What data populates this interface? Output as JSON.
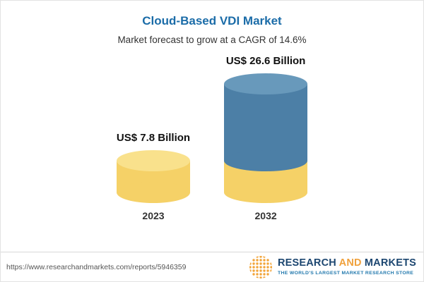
{
  "chart_data": {
    "type": "bar",
    "title": "Cloud-Based VDI Market",
    "subtitle": "Market forecast to grow at a CAGR of 14.6%",
    "categories": [
      "2023",
      "2032"
    ],
    "values": [
      7.8,
      26.6
    ],
    "unit": "US$ Billion",
    "value_labels": [
      "US$ 7.8 Billion",
      "US$ 26.6 Billion"
    ],
    "cagr_percent": 14.6,
    "ylim": [
      0,
      30
    ],
    "legend": "none",
    "axes": "none",
    "colors": {
      "bar_2023_body": "#f5d167",
      "bar_2023_top": "#f9e18c",
      "bar_2032_body": "#4c7fa6",
      "bar_2032_top": "#6899bb",
      "bar_2032_base_band": "#f5d167",
      "title_text": "#1b6ca8"
    }
  },
  "footer": {
    "source_url": "https://www.researchandmarkets.com/reports/5946359",
    "logo_words": [
      "RESEARCH",
      "AND",
      "MARKETS"
    ],
    "logo_tagline": "THE WORLD'S LARGEST MARKET RESEARCH STORE"
  }
}
